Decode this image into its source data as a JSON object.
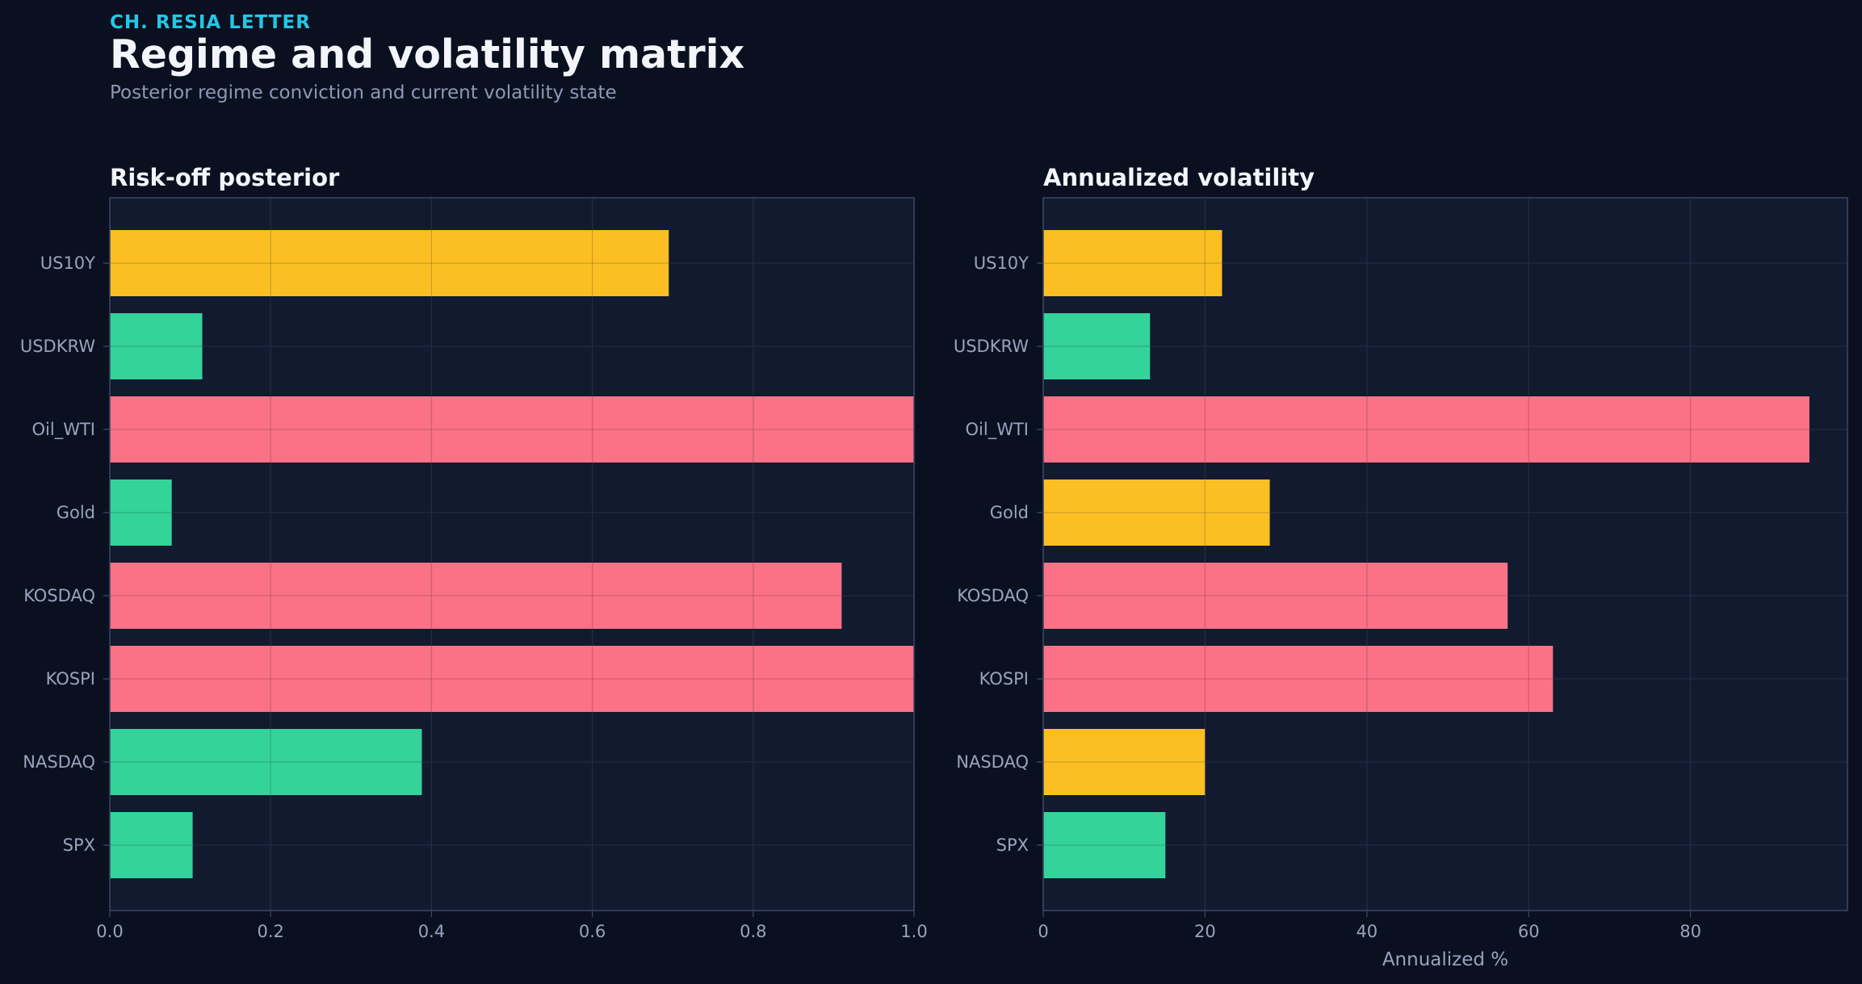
{
  "header": {
    "kicker": "CH. RESIA LETTER",
    "title": "Regime and volatility matrix",
    "subtitle": "Posterior regime conviction and current volatility state"
  },
  "colors": {
    "background": "#0b1020",
    "panel": "#111a2e",
    "panel_border": "#3a4766",
    "grid": "#27324a",
    "tick_text": "#9aa3bd",
    "title_text": "#f3f5fa",
    "kicker": "#22c8e6",
    "yellow": "#fbbf24",
    "green": "#34d399",
    "red": "#fb7185"
  },
  "chart_data": [
    {
      "type": "bar",
      "orientation": "horizontal",
      "title": "Risk-off posterior",
      "xlabel": "",
      "ylabel": "",
      "categories": [
        "US10Y",
        "USDKRW",
        "Oil_WTI",
        "Gold",
        "KOSDAQ",
        "KOSPI",
        "NASDAQ",
        "SPX"
      ],
      "values": [
        0.695,
        0.115,
        1.0,
        0.077,
        0.91,
        1.0,
        0.388,
        0.103
      ],
      "bar_colors": [
        "yellow",
        "green",
        "red",
        "green",
        "red",
        "red",
        "green",
        "green"
      ],
      "xlim": [
        0,
        1.0
      ],
      "xticks": [
        0,
        0.2,
        0.4,
        0.6,
        0.8,
        1.0
      ],
      "xtick_labels": [
        "0.0",
        "0.2",
        "0.4",
        "0.6",
        "0.8",
        "1.0"
      ],
      "grid": true,
      "legend": "none"
    },
    {
      "type": "bar",
      "orientation": "horizontal",
      "title": "Annualized volatility",
      "xlabel": "Annualized %",
      "ylabel": "",
      "categories": [
        "US10Y",
        "USDKRW",
        "Oil_WTI",
        "Gold",
        "KOSDAQ",
        "KOSPI",
        "NASDAQ",
        "SPX"
      ],
      "values": [
        22.1,
        13.2,
        94.7,
        28.0,
        57.4,
        63.0,
        20.0,
        15.1
      ],
      "bar_colors": [
        "yellow",
        "green",
        "red",
        "yellow",
        "red",
        "red",
        "yellow",
        "green"
      ],
      "xlim": [
        0,
        99.4
      ],
      "xticks": [
        0,
        20,
        40,
        60,
        80
      ],
      "xtick_labels": [
        "0",
        "20",
        "40",
        "60",
        "80"
      ],
      "grid": true,
      "legend": "none"
    }
  ]
}
